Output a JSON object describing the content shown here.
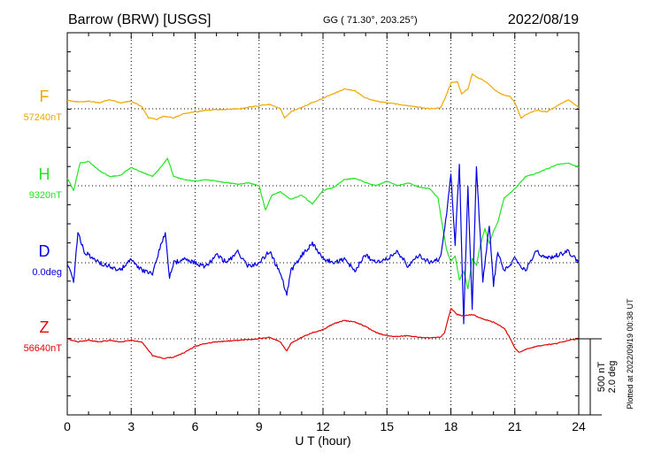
{
  "header": {
    "station": "Barrow (BRW)  [USGS]",
    "coords": "GG ( 71.30°, 203.25°)",
    "date": "2022/08/19"
  },
  "side_note": "Plotted at 2022/09/19 00:38 UT",
  "scale_bar": {
    "line1": "500 nT",
    "line2": "2.0 deg"
  },
  "chart_data": {
    "type": "line",
    "xlabel": "U T (hour)",
    "xlim": [
      0,
      24
    ],
    "xticks": [
      "0",
      "3",
      "6",
      "9",
      "12",
      "15",
      "18",
      "21",
      "24"
    ],
    "grid": true,
    "scale_nT": 500,
    "scale_deg": 2.0,
    "series": [
      {
        "name": "F",
        "baseline_label": "57240nT",
        "color": "#f0a800",
        "baseline": 57240,
        "unit": "nT",
        "x": [
          0,
          0.5,
          1,
          1.5,
          2,
          2.5,
          3,
          3.5,
          3.8,
          4.2,
          4.5,
          5,
          5.5,
          6,
          6.5,
          7,
          7.5,
          8,
          8.5,
          9,
          9.5,
          10,
          10.2,
          10.5,
          11,
          11.5,
          12,
          12.5,
          13,
          13.5,
          14,
          14.5,
          15,
          15.5,
          16,
          16.5,
          17,
          17.5,
          17.7,
          18,
          18.3,
          18.5,
          18.8,
          19,
          19.3,
          19.5,
          19.8,
          20,
          20.2,
          20.5,
          20.8,
          21,
          21.3,
          21.5,
          22,
          22.5,
          23,
          23.5,
          24
        ],
        "values": [
          55,
          45,
          50,
          40,
          60,
          40,
          50,
          15,
          -60,
          -70,
          -50,
          -60,
          -30,
          -20,
          -10,
          -5,
          -5,
          0,
          10,
          20,
          30,
          0,
          -60,
          -20,
          10,
          40,
          70,
          100,
          130,
          120,
          70,
          50,
          40,
          30,
          20,
          10,
          0,
          5,
          60,
          170,
          180,
          100,
          130,
          230,
          200,
          190,
          160,
          130,
          110,
          90,
          80,
          40,
          -60,
          -40,
          -10,
          -20,
          20,
          60,
          10
        ]
      },
      {
        "name": "H",
        "baseline_label": "9320nT",
        "color": "#22e622",
        "baseline": 9320,
        "unit": "nT",
        "x": [
          0,
          0.3,
          0.6,
          1,
          1.5,
          2,
          2.5,
          3,
          3.5,
          4,
          4.5,
          4.7,
          5,
          5.5,
          6,
          6.5,
          7,
          7.5,
          8,
          8.5,
          9,
          9.3,
          9.6,
          10,
          10.5,
          11,
          11.5,
          12,
          12.5,
          13,
          13.5,
          14,
          14.5,
          15,
          15.5,
          16,
          16.5,
          17,
          17.4,
          17.6,
          17.8,
          18,
          18.2,
          18.4,
          18.6,
          18.8,
          19,
          19.2,
          19.4,
          19.6,
          19.8,
          20,
          20.2,
          20.5,
          21,
          21.5,
          22,
          22.5,
          23,
          23.5,
          24
        ],
        "values": [
          50,
          -30,
          150,
          160,
          100,
          60,
          70,
          120,
          90,
          60,
          140,
          180,
          60,
          40,
          30,
          40,
          30,
          20,
          10,
          20,
          0,
          -160,
          -60,
          -40,
          -90,
          -60,
          -120,
          -30,
          -10,
          40,
          50,
          20,
          0,
          30,
          0,
          20,
          -10,
          -20,
          -80,
          -260,
          -420,
          -500,
          -460,
          -620,
          -560,
          -680,
          -480,
          -520,
          -380,
          -280,
          -380,
          -300,
          -240,
          -80,
          -20,
          60,
          80,
          110,
          140,
          150,
          120
        ]
      },
      {
        "name": "D",
        "baseline_label": "0.0deg",
        "color": "#0000e6",
        "baseline": 0.0,
        "unit": "deg",
        "x": [
          0,
          0.3,
          0.5,
          0.8,
          1,
          1.5,
          2,
          2.5,
          3,
          3.5,
          4,
          4.3,
          4.6,
          4.8,
          5,
          5.5,
          6,
          6.5,
          7,
          7.5,
          8,
          8.5,
          9,
          9.5,
          10,
          10.3,
          10.5,
          11,
          11.5,
          12,
          12.5,
          13,
          13.5,
          14,
          14.5,
          15,
          15.5,
          16,
          16.5,
          17,
          17.5,
          17.8,
          18,
          18.2,
          18.4,
          18.6,
          18.8,
          19,
          19.2,
          19.5,
          19.8,
          20,
          20.2,
          20.5,
          21,
          21.5,
          22,
          22.5,
          23,
          23.5,
          24
        ],
        "values": [
          0,
          -0.5,
          0.8,
          0.3,
          0.2,
          0,
          -0.1,
          -0.2,
          0.1,
          -0.2,
          -0.3,
          0.3,
          0.8,
          -0.4,
          0,
          0.1,
          0,
          -0.1,
          0.2,
          0,
          0.3,
          -0.1,
          0,
          0.3,
          -0.3,
          -0.8,
          -0.2,
          0.2,
          0.5,
          0.1,
          0,
          0.1,
          -0.2,
          0.2,
          0,
          0.1,
          0.3,
          -0.1,
          0.2,
          0,
          0.1,
          1.3,
          2.3,
          0.5,
          2.6,
          -1.6,
          2.0,
          -1.2,
          2.5,
          -0.5,
          1.0,
          -0.6,
          0.3,
          -0.2,
          0.1,
          -0.2,
          0.3,
          0.1,
          0.2,
          0.3,
          0
        ]
      },
      {
        "name": "Z",
        "baseline_label": "56640nT",
        "color": "#e60000",
        "baseline": 56640,
        "unit": "nT",
        "x": [
          0,
          0.5,
          1,
          1.5,
          2,
          2.5,
          3,
          3.5,
          4,
          4.5,
          5,
          5.5,
          6,
          6.5,
          7,
          7.5,
          8,
          8.5,
          9,
          9.5,
          10,
          10.3,
          10.5,
          11,
          11.5,
          12,
          12.5,
          13,
          13.5,
          14,
          14.5,
          15,
          15.5,
          16,
          16.5,
          17,
          17.5,
          17.7,
          18,
          18.3,
          18.6,
          19,
          19.5,
          20,
          20.5,
          20.8,
          21,
          21.2,
          21.5,
          22,
          22.5,
          23,
          23.5,
          24
        ],
        "values": [
          0,
          -20,
          -10,
          -20,
          -10,
          -20,
          -10,
          -20,
          -110,
          -130,
          -120,
          -90,
          -50,
          -30,
          -20,
          -15,
          -10,
          -5,
          0,
          10,
          -20,
          -80,
          -30,
          10,
          40,
          60,
          100,
          120,
          110,
          80,
          40,
          20,
          15,
          20,
          10,
          5,
          10,
          40,
          200,
          160,
          150,
          160,
          130,
          110,
          70,
          0,
          -60,
          -90,
          -70,
          -50,
          -40,
          -30,
          -10,
          0
        ]
      }
    ]
  }
}
